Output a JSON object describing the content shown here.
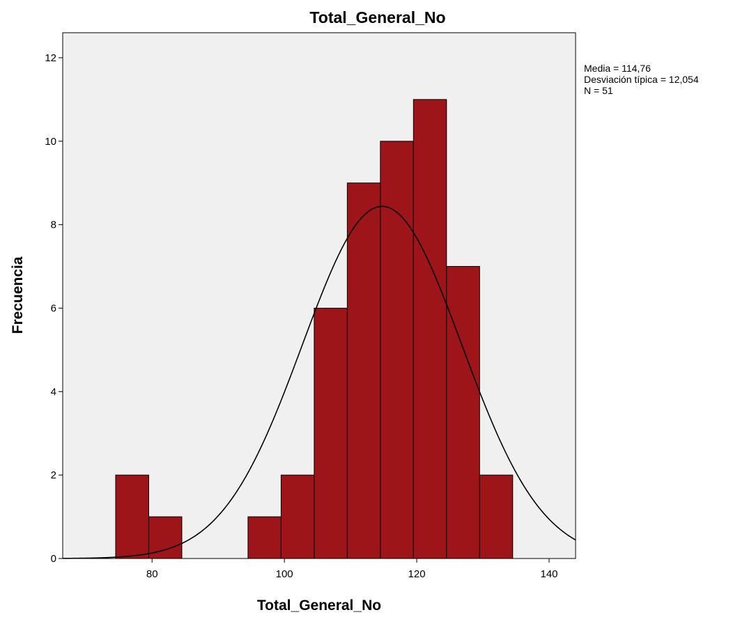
{
  "chart_data": {
    "type": "histogram",
    "title": "Total_General_No",
    "xlabel": "Total_General_No",
    "ylabel": "Frecuencia",
    "xlim": [
      66.5,
      144
    ],
    "ylim": [
      0,
      12.6
    ],
    "x_ticks": [
      80,
      100,
      120,
      140
    ],
    "y_ticks": [
      0,
      2,
      4,
      6,
      8,
      10,
      12
    ],
    "bin_width": 5,
    "bins": [
      {
        "start": 74.5,
        "end": 79.5,
        "count": 2
      },
      {
        "start": 79.5,
        "end": 84.5,
        "count": 1
      },
      {
        "start": 94.5,
        "end": 99.5,
        "count": 1
      },
      {
        "start": 99.5,
        "end": 104.5,
        "count": 2
      },
      {
        "start": 104.5,
        "end": 109.5,
        "count": 6
      },
      {
        "start": 109.5,
        "end": 114.5,
        "count": 9
      },
      {
        "start": 114.5,
        "end": 119.5,
        "count": 10
      },
      {
        "start": 119.5,
        "end": 124.5,
        "count": 11
      },
      {
        "start": 124.5,
        "end": 129.5,
        "count": 7
      },
      {
        "start": 129.5,
        "end": 134.5,
        "count": 2
      }
    ],
    "normal_curve": {
      "mean": 114.76,
      "sd": 12.054,
      "n": 51
    },
    "stats_text": [
      "Media = 114,76",
      "Desviación típica = 12,054",
      "N = 51"
    ],
    "colors": {
      "bar_fill": "#9e1519",
      "bar_stroke": "#000000",
      "plot_bg": "#f0f0f0",
      "curve": "#000000"
    },
    "grid": false,
    "legend": "none"
  }
}
